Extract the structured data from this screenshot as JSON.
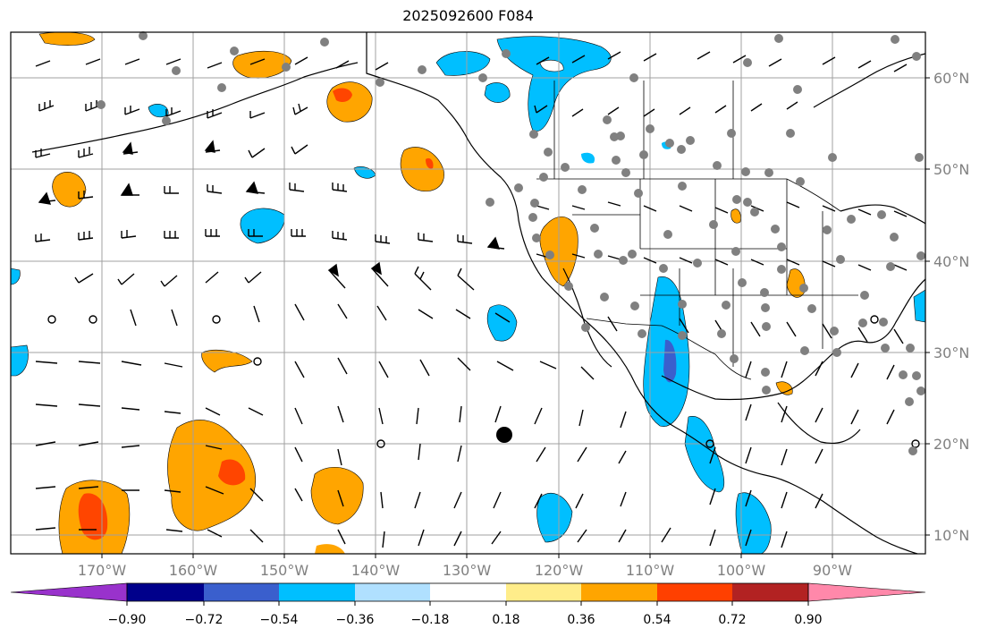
{
  "title": "2025092600 F084",
  "map": {
    "lon_labels": [
      "170°W",
      "160°W",
      "150°W",
      "140°W",
      "130°W",
      "120°W",
      "110°W",
      "100°W",
      "90°W"
    ],
    "lat_labels": [
      "60°N",
      "50°N",
      "40°N",
      "30°N",
      "20°N",
      "10°N"
    ]
  },
  "colorbar": {
    "labels": [
      "−0.90",
      "−0.72",
      "−0.54",
      "−0.36",
      "−0.18",
      "0.18",
      "0.36",
      "0.54",
      "0.72",
      "0.90"
    ],
    "colors": [
      "#9932cc",
      "#00008b",
      "#3a5fcd",
      "#00bfff",
      "#b0e0ff",
      "#ffffff",
      "#ffed8a",
      "#ffa500",
      "#ff4000",
      "#b22222",
      "#ff88aa"
    ]
  },
  "colors": {
    "land_outline": "#000000",
    "grid": "#a0a0a0",
    "station_dot": "#808080",
    "orange": "#ffa500",
    "red_orange": "#ff4500",
    "blue": "#00bfff",
    "royal_blue": "#4169e1"
  }
}
